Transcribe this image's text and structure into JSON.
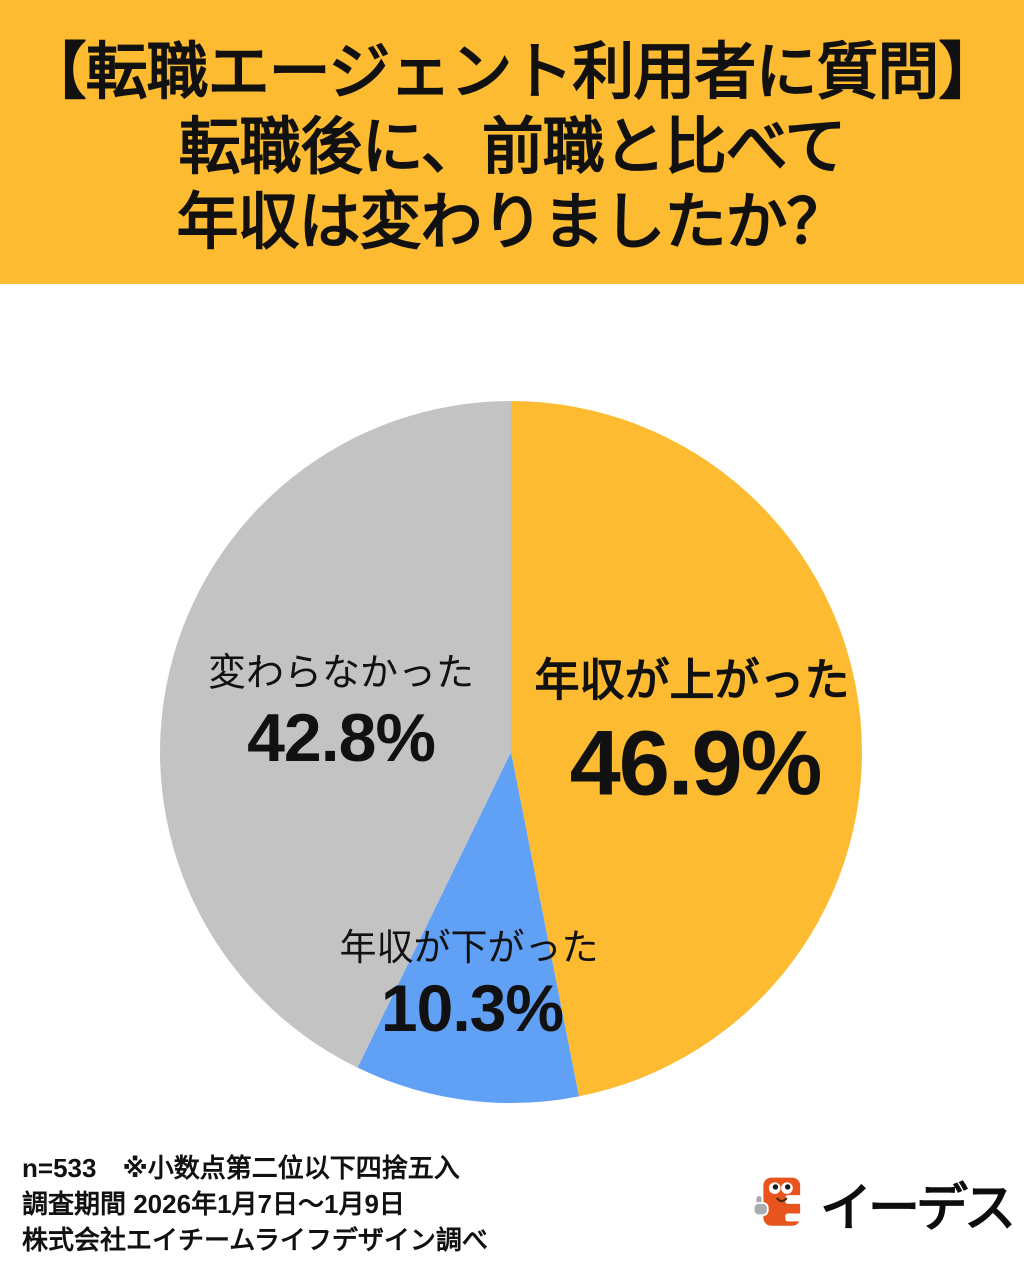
{
  "header": {
    "bg": "#FDBB31",
    "lines": [
      "【転職エージェント利用者に質問】",
      "転職後に、前職と比べて",
      "年収は変わりましたか？"
    ]
  },
  "chart_data": {
    "type": "pie",
    "title": "転職後に、前職と比べて年収は変わりましたか？",
    "start_angle_deg": -90,
    "direction": "clockwise",
    "legend_position": "inside",
    "value_suffix": "%",
    "slices": [
      {
        "label": "年収が上がった",
        "value": 46.9,
        "display": "46.9%",
        "color": "#FDBB31"
      },
      {
        "label": "年収が下がった",
        "value": 10.3,
        "display": "10.3%",
        "color": "#60A0F5"
      },
      {
        "label": "変わらなかった",
        "value": 42.8,
        "display": "42.8%",
        "color": "#C3C3C3"
      }
    ]
  },
  "footer": {
    "note_line": "n=533　※小数点第二位以下四捨五入",
    "period_line": "調査期間 2026年1月7日～1月9日",
    "source_line": "株式会社エイチームライフデザイン調べ"
  },
  "logo": {
    "text": "イーデス",
    "mark_color": "#E8541D",
    "hand_color": "#A8ADB2"
  }
}
